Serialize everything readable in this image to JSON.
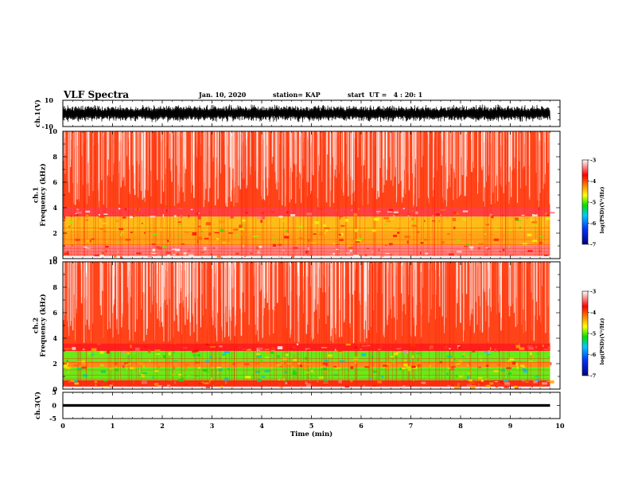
{
  "header": {
    "title": "VLF Spectra",
    "date": "Jan. 10, 2020",
    "station": "station= KAP",
    "start_ut": "start  UT =   4 : 20: 1"
  },
  "colors": {
    "axis": "#000000",
    "colormap": [
      "#000080",
      "#0033ff",
      "#00c8ff",
      "#00e000",
      "#ffff00",
      "#ff8000",
      "#ff0000",
      "#ffffff"
    ]
  },
  "chart_data": [
    {
      "type": "line",
      "panel": "ch1_waveform",
      "ylabel": "ch.1(V)",
      "ylim": [
        -10,
        10
      ],
      "yticks": [
        "10",
        "-10"
      ],
      "xlim": [
        0,
        10
      ],
      "description_of_series": "dense waveform filling roughly -7 V to +7 V"
    },
    {
      "type": "heatmap",
      "panel": "ch1_spectrogram",
      "ylabel": "ch.1\nFrequency (kHz)",
      "ylim": [
        0,
        10
      ],
      "yticks": [
        "0",
        "2",
        "4",
        "6",
        "8",
        "10"
      ],
      "xlim": [
        0,
        9.8
      ],
      "colorbar": {
        "label": "log(PSD)(V²/Hz)",
        "range": [
          -7,
          -3
        ],
        "ticks": [
          "-3",
          "-4",
          "-5",
          "-6",
          "-7"
        ]
      },
      "bands": [
        {
          "f_low": 4.0,
          "f_high": 10.0,
          "log_psd": -3.9
        },
        {
          "f_low": 3.3,
          "f_high": 4.0,
          "log_psd": -3.6
        },
        {
          "f_low": 2.0,
          "f_high": 3.3,
          "log_psd": -4.4
        },
        {
          "f_low": 1.0,
          "f_high": 2.0,
          "log_psd": -4.3
        },
        {
          "f_low": 0.2,
          "f_high": 1.0,
          "log_psd": -3.4
        }
      ]
    },
    {
      "type": "heatmap",
      "panel": "ch2_spectrogram",
      "ylabel": "ch.2\nFrequency (kHz)",
      "ylim": [
        0,
        10
      ],
      "yticks": [
        "0",
        "2",
        "4",
        "6",
        "8",
        "10"
      ],
      "xlim": [
        0,
        9.8
      ],
      "colorbar": {
        "label": "log(PSD)(V²/Hz)",
        "range": [
          -7,
          -3
        ],
        "ticks": [
          "-3",
          "-4",
          "-5",
          "-6",
          "-7"
        ]
      },
      "bands": [
        {
          "f_low": 3.6,
          "f_high": 10.0,
          "log_psd": -3.9
        },
        {
          "f_low": 3.0,
          "f_high": 3.6,
          "log_psd": -3.7
        },
        {
          "f_low": 2.2,
          "f_high": 3.0,
          "log_psd": -5.0
        },
        {
          "f_low": 1.7,
          "f_high": 2.2,
          "log_psd": -4.2
        },
        {
          "f_low": 0.7,
          "f_high": 1.7,
          "log_psd": -5.0
        },
        {
          "f_low": 0.2,
          "f_high": 0.7,
          "log_psd": -3.8
        }
      ]
    },
    {
      "type": "line",
      "panel": "ch3_waveform",
      "ylabel": "ch.3(V)",
      "ylim": [
        -5,
        5
      ],
      "yticks": [
        "5",
        "0",
        "-5"
      ],
      "xlabel": "Time (min)",
      "xlim": [
        0,
        10
      ],
      "xticks": [
        "0",
        "1",
        "2",
        "3",
        "4",
        "5",
        "6",
        "7",
        "8",
        "9",
        "10"
      ],
      "series_band": [
        -0.5,
        0.5
      ]
    }
  ]
}
